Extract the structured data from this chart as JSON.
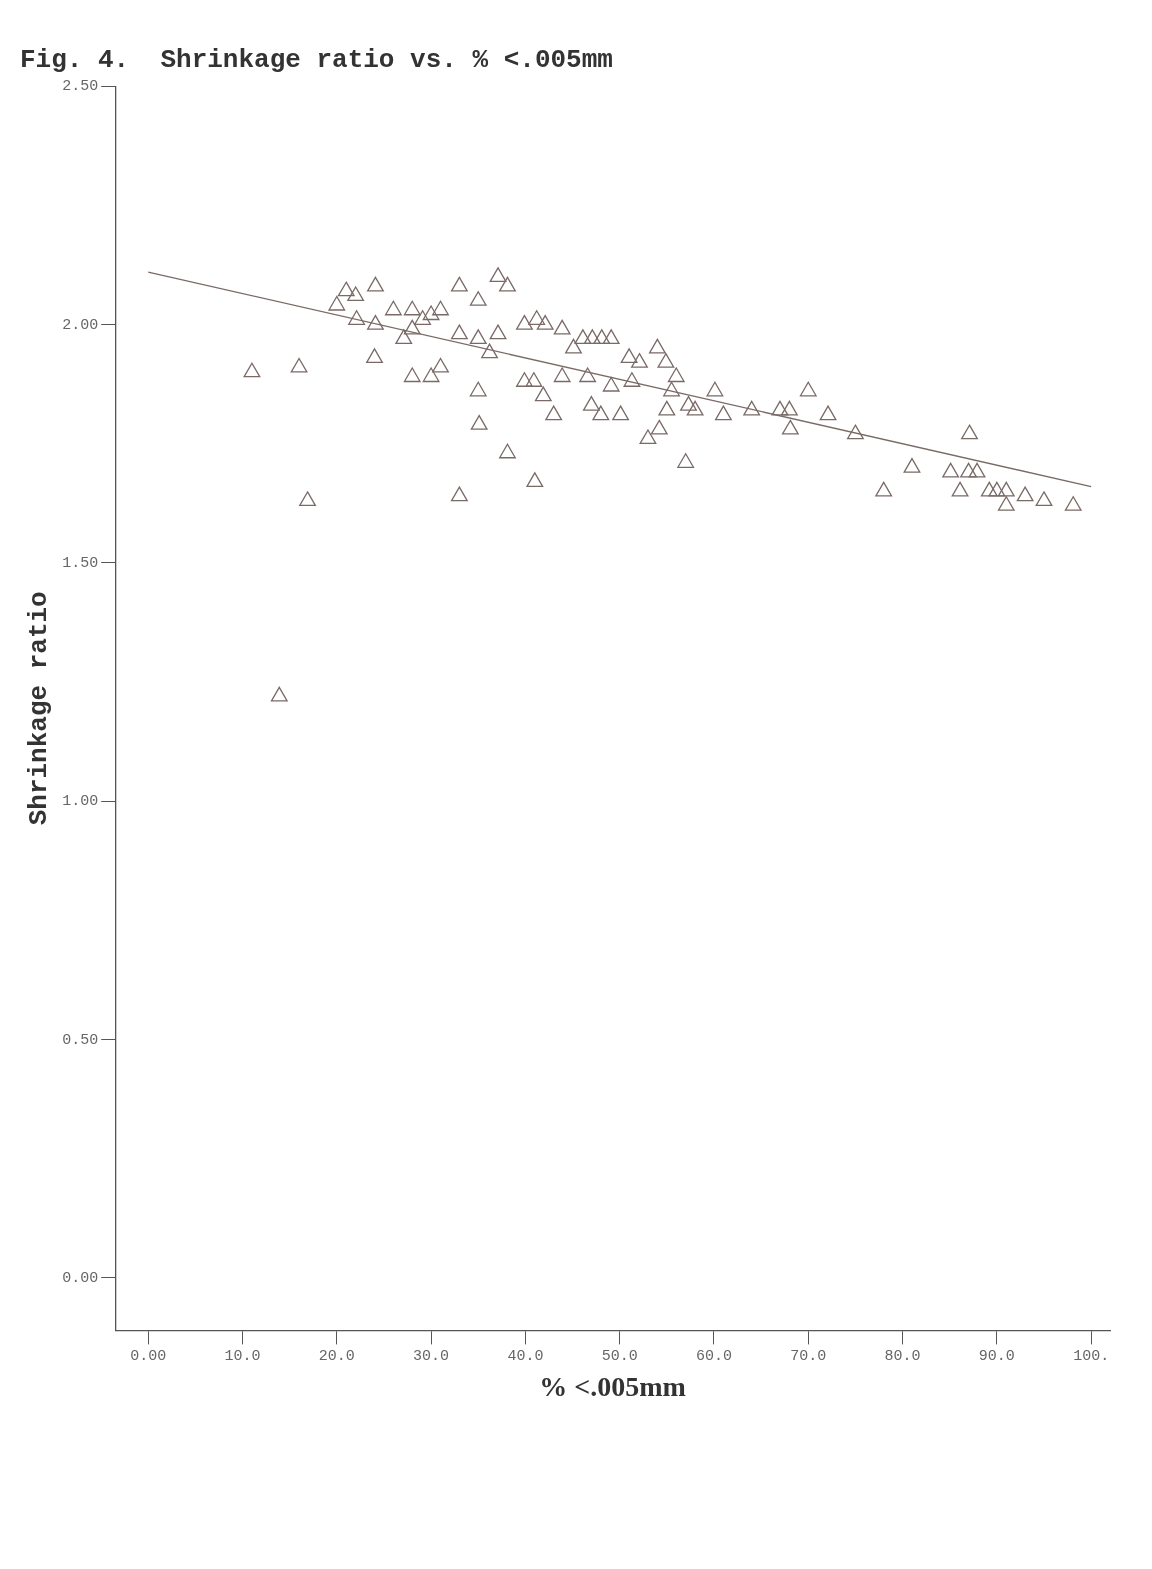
{
  "chart_data": {
    "type": "scatter",
    "title": "Fig. 4.  Shrinkage ratio vs. % <.005mm",
    "xlabel": "% <.005mm",
    "ylabel": "Shrinkage ratio",
    "xlim": [
      -3.5,
      102
    ],
    "xticks": [
      {
        "value": 0,
        "label": "0.00"
      },
      {
        "value": 10,
        "label": "10.0"
      },
      {
        "value": 20,
        "label": "20.0"
      },
      {
        "value": 30,
        "label": "30.0"
      },
      {
        "value": 40,
        "label": "40.0"
      },
      {
        "value": 50,
        "label": "50.0"
      },
      {
        "value": 60,
        "label": "60.0"
      },
      {
        "value": 70,
        "label": "70.0"
      },
      {
        "value": 80,
        "label": "80.0"
      },
      {
        "value": 90,
        "label": "90.0"
      },
      {
        "value": 100,
        "label": "100."
      }
    ],
    "ylim": [
      -0.11,
      2.5
    ],
    "yticks": [
      {
        "value": 0,
        "label": "0.00"
      },
      {
        "value": 0.5,
        "label": "0.50"
      },
      {
        "value": 1,
        "label": "1.00"
      },
      {
        "value": 1.5,
        "label": "1.50"
      },
      {
        "value": 2,
        "label": "2.00"
      },
      {
        "value": 2.5,
        "label": "2.50"
      }
    ],
    "grid": false,
    "series": [
      {
        "color": "#7a6a66",
        "marker": "triangle",
        "x": [
          98.1,
          95.0,
          93.0,
          91.0,
          91.0,
          90.0,
          89.2,
          87.1,
          87.9,
          87.0,
          86.1,
          85.1,
          81.0,
          78.0,
          75.0,
          72.1,
          70.0,
          68.0,
          68.1,
          67.0,
          64.0,
          61.0,
          60.1,
          58.0,
          57.0,
          57.3,
          56.0,
          55.5,
          54.0,
          54.9,
          55.0,
          54.2,
          53.0,
          52.1,
          51.0,
          51.3,
          50.1,
          49.1,
          49.1,
          48.1,
          47.1,
          48.0,
          47.0,
          46.6,
          46.1,
          45.1,
          43.9,
          43.9,
          43.0,
          41.9,
          42.1,
          41.2,
          40.9,
          41.0,
          39.9,
          39.9,
          38.1,
          38.1,
          37.1,
          37.1,
          36.2,
          35.0,
          35.0,
          35.1,
          35.0,
          33.0,
          33.0,
          33.0,
          31.0,
          31.0,
          30.0,
          30.0,
          29.1,
          28.0,
          28.0,
          28.0,
          27.1,
          26.0,
          24.1,
          24.1,
          24.0,
          22.0,
          22.1,
          21.0,
          20.0,
          16.9,
          16.0,
          13.9,
          11.0
        ],
        "values": [
          1.62,
          1.63,
          1.64,
          1.62,
          1.65,
          1.65,
          1.65,
          1.77,
          1.69,
          1.69,
          1.65,
          1.69,
          1.7,
          1.65,
          1.77,
          1.81,
          1.86,
          1.82,
          1.78,
          1.82,
          1.82,
          1.81,
          1.86,
          1.82,
          1.71,
          1.83,
          1.89,
          1.86,
          1.95,
          1.92,
          1.82,
          1.78,
          1.76,
          1.92,
          1.93,
          1.88,
          1.81,
          1.87,
          1.97,
          1.97,
          1.97,
          1.81,
          1.83,
          1.89,
          1.97,
          1.95,
          1.89,
          1.99,
          1.81,
          1.85,
          2.0,
          2.01,
          1.88,
          1.67,
          2.0,
          1.88,
          1.73,
          2.08,
          2.1,
          1.98,
          1.94,
          2.05,
          1.86,
          1.79,
          1.97,
          2.08,
          1.98,
          1.64,
          2.03,
          1.91,
          2.02,
          1.89,
          2.01,
          1.99,
          2.03,
          1.89,
          1.97,
          2.03,
          2.08,
          2.0,
          1.93,
          2.06,
          2.01,
          2.07,
          2.04,
          1.63,
          1.91,
          1.22,
          1.9
        ]
      },
      {
        "type": "line",
        "color": "#7a6a66",
        "marker": "none",
        "x": [
          0,
          100
        ],
        "values": [
          2.11,
          1.66
        ]
      }
    ]
  }
}
